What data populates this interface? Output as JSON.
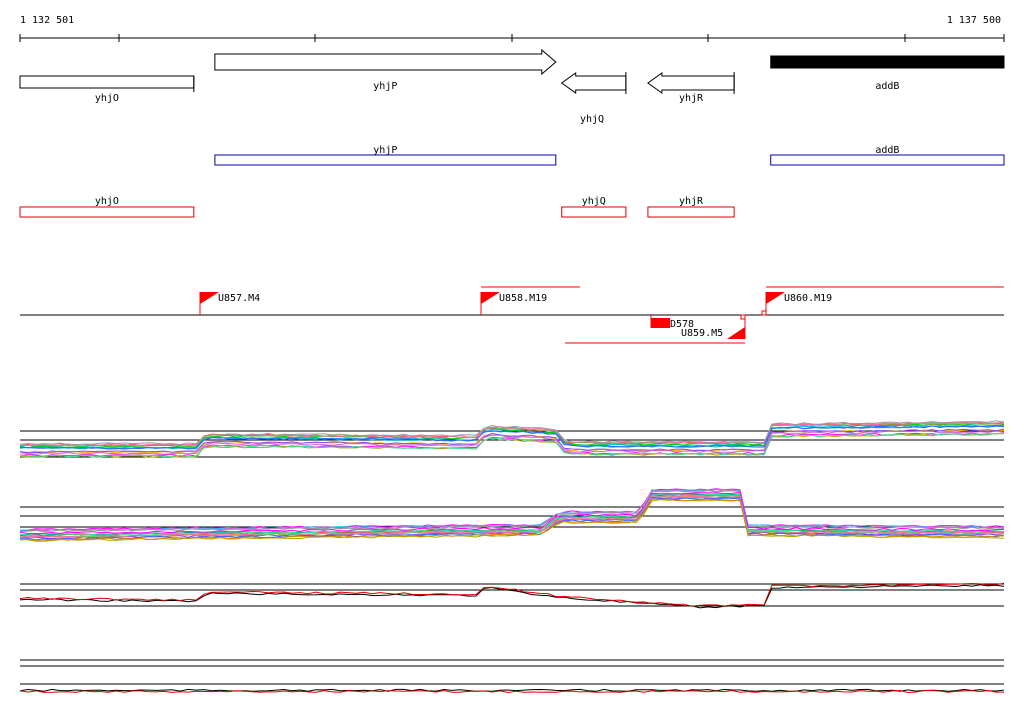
{
  "coordinate_axis": {
    "start_label": "1 132 501",
    "end_label": "1 137 500",
    "start": 1132501,
    "end": 1137500
  },
  "genes": [
    {
      "name": "yhjO",
      "start": 1132501,
      "end": 1133384,
      "strand": "none",
      "fill": "white"
    },
    {
      "name": "yhjP",
      "start": 1133491,
      "end": 1135223,
      "strand": "+",
      "fill": "white"
    },
    {
      "name": "yhjQ",
      "start": 1135253,
      "end": 1135579,
      "strand": "-",
      "fill": "white"
    },
    {
      "name": "yhjR",
      "start": 1135691,
      "end": 1136129,
      "strand": "-",
      "fill": "white"
    },
    {
      "name": "addB",
      "start": 1136315,
      "end": 1137500,
      "strand": "none",
      "fill": "black"
    }
  ],
  "annotation_tracks": [
    {
      "color": "#0000aa",
      "items": [
        {
          "name": "yhjP",
          "start": 1133491,
          "end": 1135223
        },
        {
          "name": "addB",
          "start": 1136315,
          "end": 1137500
        }
      ]
    },
    {
      "color": "#e00000",
      "items": [
        {
          "name": "yhjO",
          "start": 1132501,
          "end": 1133384
        },
        {
          "name": "yhjQ",
          "start": 1135253,
          "end": 1135579
        },
        {
          "name": "yhjR",
          "start": 1135691,
          "end": 1136129
        }
      ]
    }
  ],
  "transcription_units": [
    {
      "name": "U857.M4",
      "start": 1133415,
      "strand": "+"
    },
    {
      "name": "U858.M19",
      "start": 1134842,
      "strand": "+"
    },
    {
      "name": "U860.M19",
      "start": 1136285,
      "strand": "+"
    },
    {
      "name": "U859.M5",
      "start": 1136129,
      "strand": "-"
    },
    {
      "name": "D578",
      "start": 1135660,
      "strand": "none"
    }
  ],
  "colors": {
    "gene_outline": "#000000",
    "annotation_blue": "#0000aa",
    "annotation_red": "#e00000",
    "tu_flag": "#ff0000",
    "axis": "#000000"
  }
}
